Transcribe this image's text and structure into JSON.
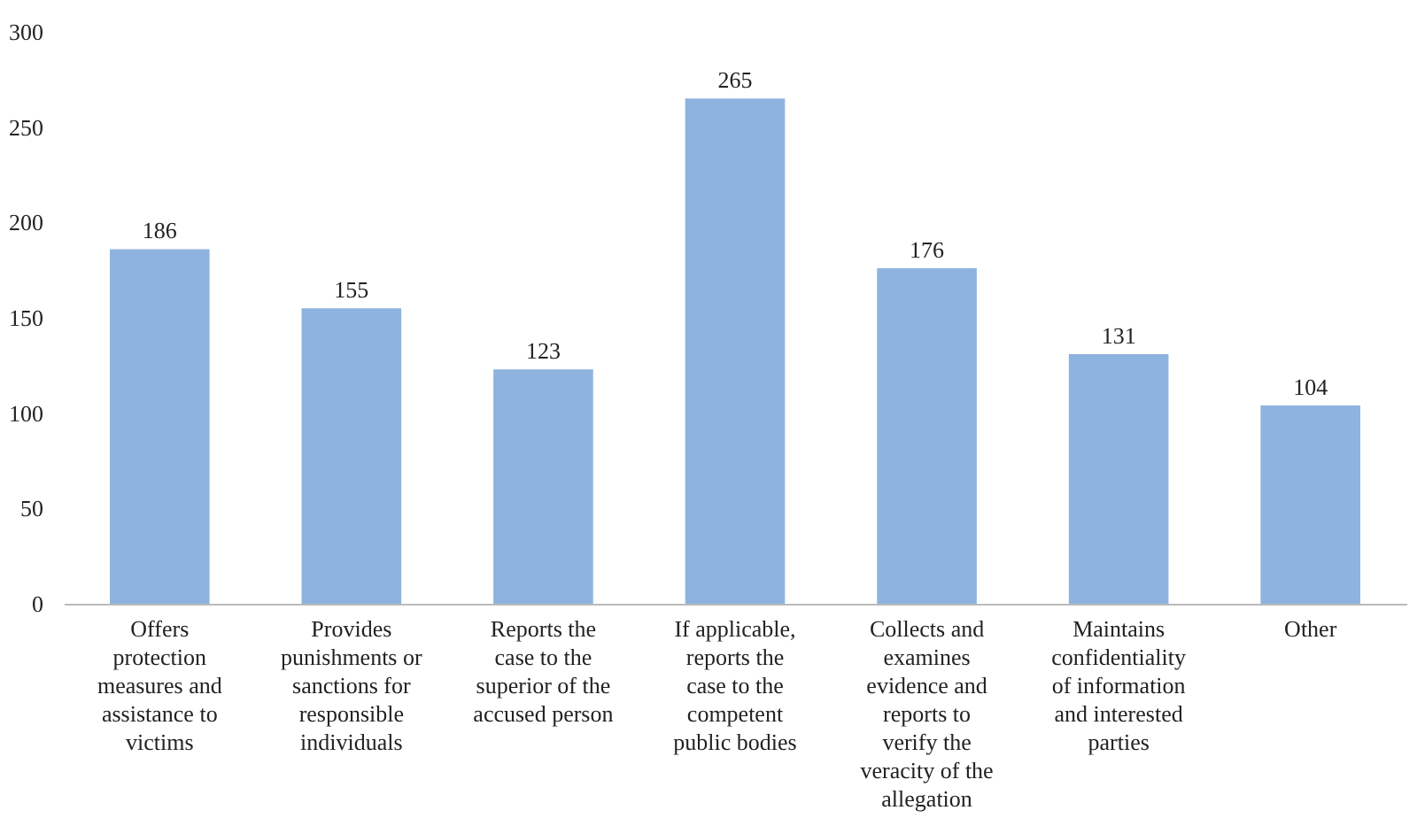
{
  "chart_data": {
    "type": "bar",
    "categories": [
      "Offers protection measures and assistance to victims",
      "Provides punishments or sanctions for responsible individuals",
      "Reports the case to the superior of the accused person",
      "If applicable, reports the case to the competent public bodies",
      "Collects and examines evidence and reports to verify the veracity of the allegation",
      "Maintains confidentiality of information and interested parties",
      "Other"
    ],
    "values": [
      186,
      155,
      123,
      265,
      176,
      131,
      104
    ],
    "color": "#8fb3df",
    "ylim": [
      0,
      300
    ],
    "yticks": [
      0,
      50,
      100,
      150,
      200,
      250,
      300
    ],
    "data_labels": true,
    "grid": false
  }
}
